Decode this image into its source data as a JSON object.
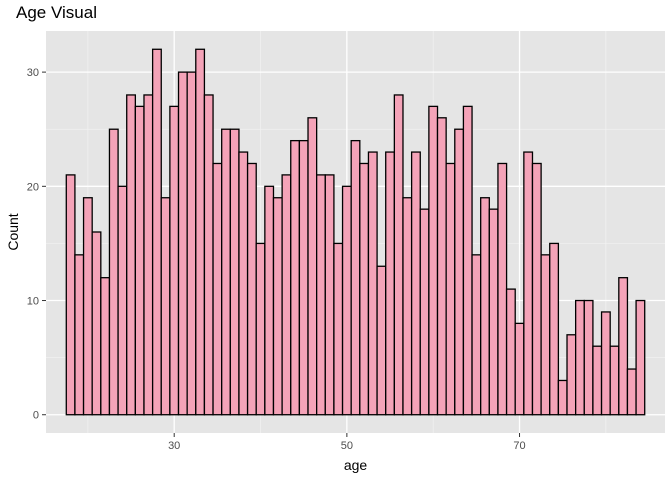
{
  "chart_data": {
    "type": "bar",
    "title": "Age Visual",
    "xlabel": "age",
    "ylabel": "Count",
    "x": [
      18,
      19,
      20,
      21,
      22,
      23,
      24,
      25,
      26,
      27,
      28,
      29,
      30,
      31,
      32,
      33,
      34,
      35,
      36,
      37,
      38,
      39,
      40,
      41,
      42,
      43,
      44,
      45,
      46,
      47,
      48,
      49,
      50,
      51,
      52,
      53,
      54,
      55,
      56,
      57,
      58,
      59,
      60,
      61,
      62,
      63,
      64,
      65,
      66,
      67,
      68,
      69,
      70,
      71,
      72,
      73,
      74,
      75,
      76,
      77,
      78,
      79,
      80,
      81,
      82,
      83,
      84
    ],
    "values": [
      21,
      14,
      19,
      16,
      12,
      25,
      20,
      28,
      27,
      28,
      32,
      19,
      27,
      30,
      30,
      32,
      28,
      22,
      25,
      25,
      23,
      22,
      15,
      20,
      19,
      21,
      24,
      24,
      26,
      21,
      21,
      15,
      20,
      24,
      22,
      23,
      13,
      23,
      28,
      19,
      23,
      18,
      27,
      26,
      22,
      25,
      27,
      14,
      19,
      18,
      22,
      11,
      8,
      23,
      22,
      14,
      15,
      3,
      7,
      10,
      10,
      6,
      9,
      6,
      12,
      4,
      10
    ],
    "xlim": [
      15.15,
      86.85
    ],
    "ylim": [
      -1.6,
      33.6
    ],
    "xticks": [
      30,
      50,
      70
    ],
    "yticks": [
      0,
      10,
      20,
      30
    ],
    "grid": true,
    "legend": "none",
    "colors": {
      "panel": "#e5e5e5",
      "gridMajor": "#ffffff",
      "gridMinor": "#f2f2f2",
      "barFill": "#f4a3b8",
      "barStroke": "#000000"
    }
  }
}
